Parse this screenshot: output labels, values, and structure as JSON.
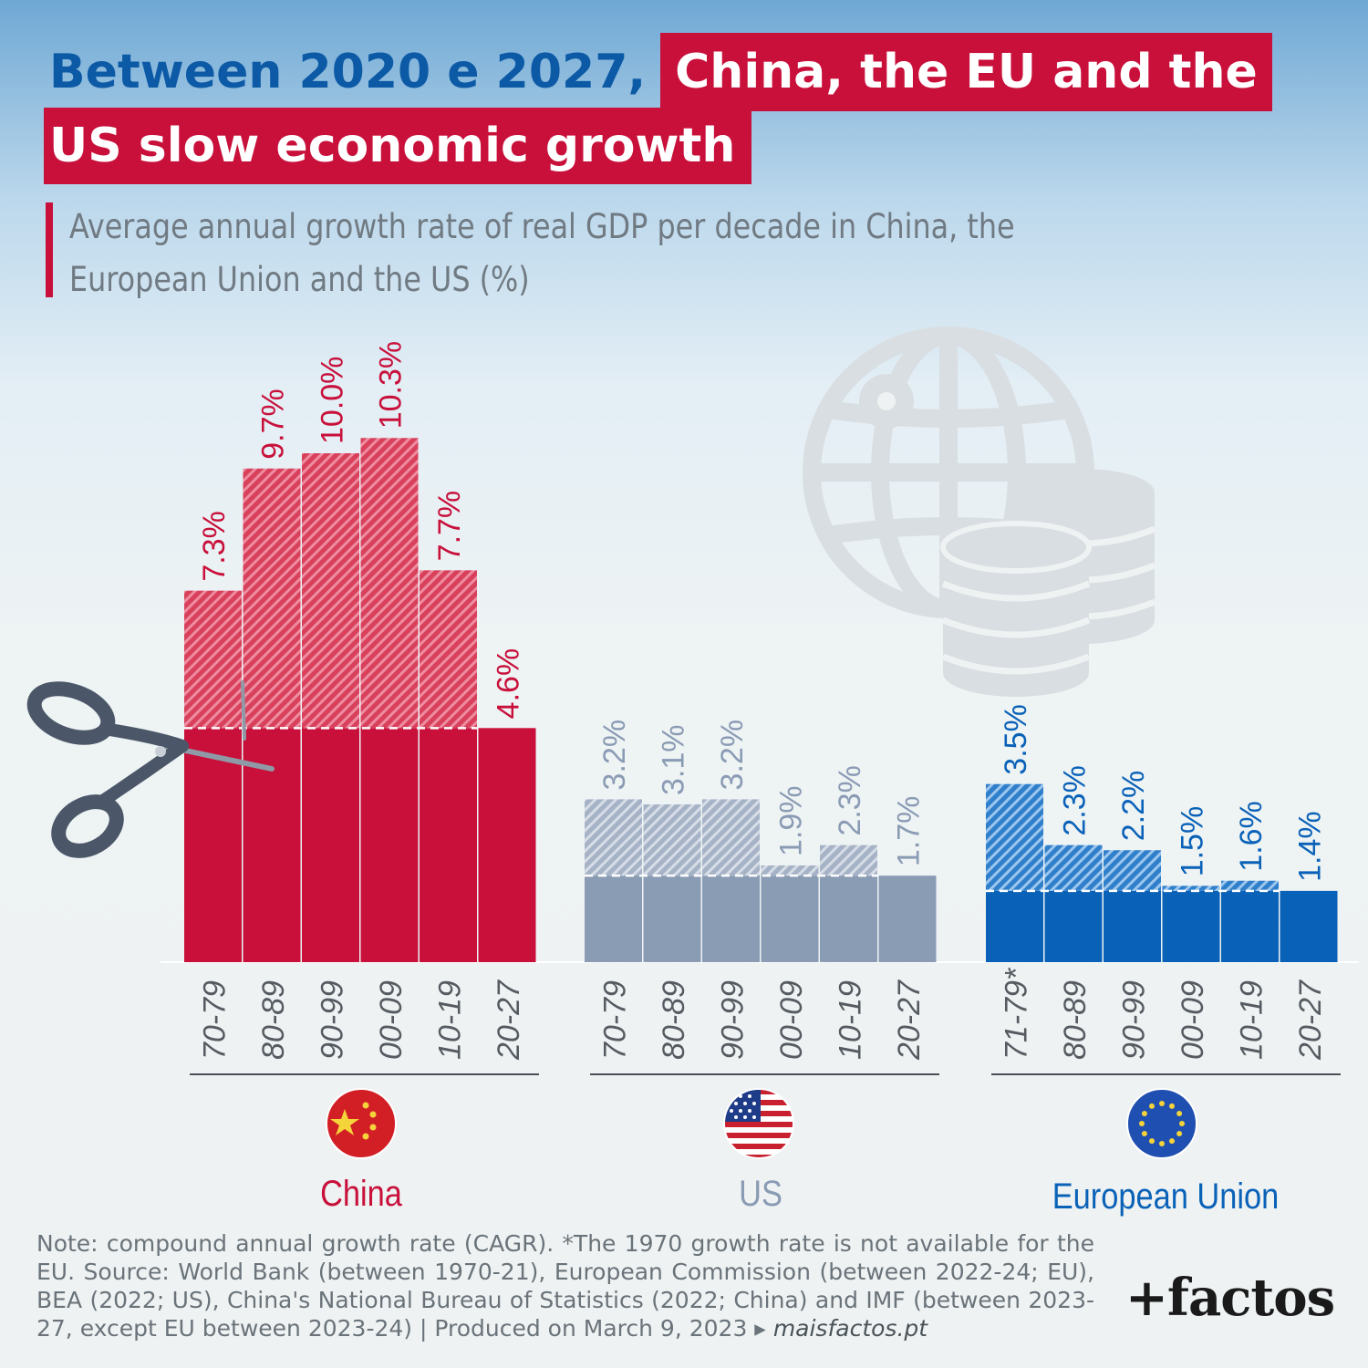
{
  "title": {
    "part1": "Between 2020 e 2027,",
    "part2": "China, the EU and the",
    "part3": "US slow economic growth"
  },
  "subtitle": "Average annual growth rate of real GDP per decade in China, the European Union and the US (%)",
  "colors": {
    "china": "#c8103b",
    "china_hatch": "#e0607a",
    "us": "#8a9bb4",
    "us_hatch": "#c2ccd9",
    "eu": "#0a62b8",
    "eu_hatch": "#5a9ad6",
    "title_blue": "#0c5aa6"
  },
  "decorations": [
    "scissors-icon",
    "globe-coins-icon"
  ],
  "chart_data": [
    {
      "type": "bar",
      "name": "China",
      "categories": [
        "70-79",
        "80-89",
        "90-99",
        "00-09",
        "10-19",
        "20-27"
      ],
      "values": [
        7.3,
        9.7,
        10.0,
        10.3,
        7.7,
        4.6
      ],
      "labels": [
        "7.3%",
        "9.7%",
        "10.0%",
        "10.3%",
        "7.7%",
        "4.6%"
      ],
      "flag": "china-flag-icon"
    },
    {
      "type": "bar",
      "name": "US",
      "categories": [
        "70-79",
        "80-89",
        "90-99",
        "00-09",
        "10-19",
        "20-27"
      ],
      "values": [
        3.2,
        3.1,
        3.2,
        1.9,
        2.3,
        1.7
      ],
      "labels": [
        "3.2%",
        "3.1%",
        "3.2%",
        "1.9%",
        "2.3%",
        "1.7%"
      ],
      "flag": "us-flag-icon"
    },
    {
      "type": "bar",
      "name": "European Union",
      "categories": [
        "71-79*",
        "80-89",
        "90-99",
        "00-09",
        "10-19",
        "20-27"
      ],
      "values": [
        3.5,
        2.3,
        2.2,
        1.5,
        1.6,
        1.4
      ],
      "labels": [
        "3.5%",
        "2.3%",
        "2.2%",
        "1.5%",
        "1.6%",
        "1.4%"
      ],
      "flag": "eu-flag-icon"
    }
  ],
  "note": "Note: compound annual growth rate (CAGR). *The 1970 growth rate is not available for the EU. Source: World Bank (between 1970-21), European Commission (between 2022-24; EU), BEA (2022; US), China's National Bureau of Statistics (2022; China) and IMF (between 2023-27, except EU between 2023-24) | Produced on March 9, 2023",
  "note_url": "maisfactos.pt",
  "logo": "+factos"
}
